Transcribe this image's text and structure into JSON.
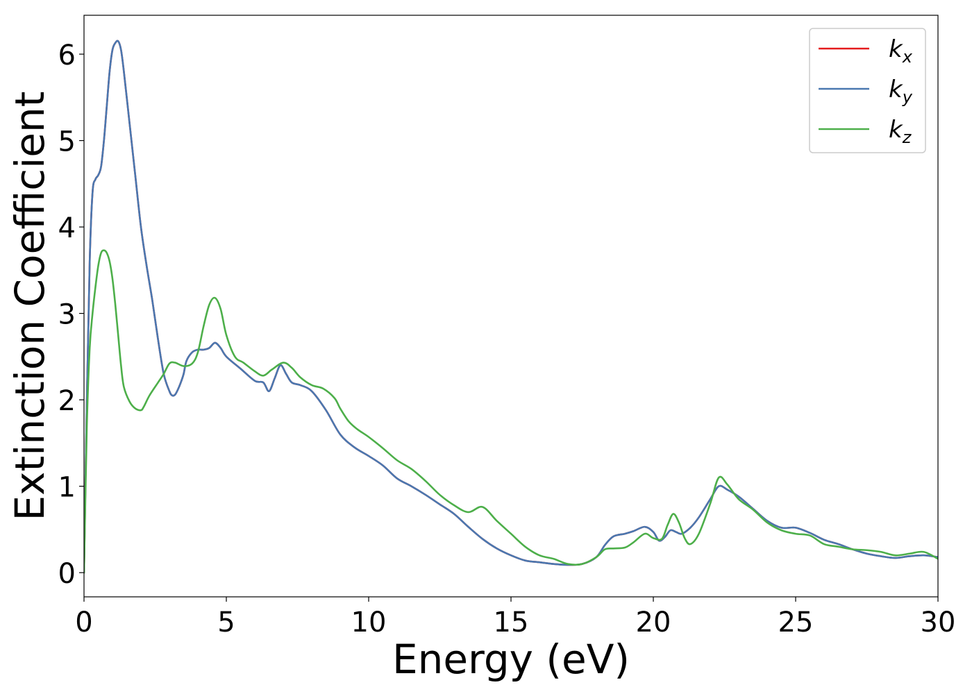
{
  "chart_data": {
    "type": "line",
    "title": "",
    "xlabel": "Energy (eV)",
    "ylabel": "Extinction Coefficient",
    "xlim": [
      0,
      30
    ],
    "ylim": [
      -0.28,
      6.45
    ],
    "xticks": [
      0,
      5,
      10,
      15,
      20,
      25,
      30
    ],
    "yticks": [
      0,
      1,
      2,
      3,
      4,
      5,
      6
    ],
    "grid": false,
    "legend_position": "top-right",
    "series": [
      {
        "name": "k_x",
        "label_main": "k",
        "label_sub": "x",
        "color": "#e41a1c",
        "x": [
          0,
          0.1,
          0.2,
          0.3,
          0.4,
          0.5,
          0.6,
          0.7,
          0.8,
          0.9,
          1.0,
          1.1,
          1.2,
          1.3,
          1.4,
          1.6,
          1.8,
          2.0,
          2.2,
          2.4,
          2.6,
          2.8,
          3.0,
          3.1,
          3.2,
          3.3,
          3.4,
          3.5,
          3.6,
          3.8,
          4.0,
          4.2,
          4.4,
          4.6,
          4.8,
          5.0,
          5.5,
          6.0,
          6.3,
          6.5,
          6.7,
          6.9,
          7.1,
          7.3,
          7.6,
          8.0,
          8.5,
          9.0,
          9.5,
          10.0,
          10.5,
          11.0,
          11.5,
          12.0,
          12.5,
          13.0,
          13.5,
          14.0,
          14.5,
          15.0,
          15.5,
          16.0,
          16.5,
          17.0,
          17.5,
          18.0,
          18.3,
          18.6,
          19.0,
          19.3,
          19.7,
          20.0,
          20.2,
          20.4,
          20.6,
          20.8,
          21.0,
          21.3,
          21.6,
          22.0,
          22.3,
          22.6,
          23.0,
          23.5,
          24.0,
          24.5,
          25.0,
          25.5,
          26.0,
          26.5,
          27.0,
          27.5,
          28.0,
          28.5,
          29.0,
          29.5,
          30.0
        ],
        "y": [
          0,
          2.0,
          3.6,
          4.4,
          4.55,
          4.6,
          4.7,
          5.0,
          5.4,
          5.8,
          6.05,
          6.13,
          6.15,
          6.05,
          5.8,
          5.2,
          4.6,
          4.0,
          3.55,
          3.15,
          2.7,
          2.3,
          2.1,
          2.05,
          2.06,
          2.12,
          2.2,
          2.3,
          2.45,
          2.55,
          2.58,
          2.58,
          2.6,
          2.66,
          2.6,
          2.5,
          2.36,
          2.22,
          2.2,
          2.1,
          2.25,
          2.4,
          2.3,
          2.2,
          2.17,
          2.1,
          1.88,
          1.6,
          1.45,
          1.35,
          1.24,
          1.09,
          1.0,
          0.9,
          0.79,
          0.68,
          0.53,
          0.39,
          0.28,
          0.2,
          0.14,
          0.12,
          0.1,
          0.09,
          0.1,
          0.18,
          0.32,
          0.42,
          0.45,
          0.48,
          0.53,
          0.47,
          0.37,
          0.41,
          0.49,
          0.47,
          0.45,
          0.52,
          0.64,
          0.85,
          1.0,
          0.96,
          0.88,
          0.74,
          0.6,
          0.52,
          0.52,
          0.46,
          0.38,
          0.33,
          0.27,
          0.22,
          0.19,
          0.17,
          0.19,
          0.2,
          0.18
        ]
      },
      {
        "name": "k_y",
        "label_main": "k",
        "label_sub": "y",
        "color": "#4a78b0",
        "x": [
          0,
          0.1,
          0.2,
          0.3,
          0.4,
          0.5,
          0.6,
          0.7,
          0.8,
          0.9,
          1.0,
          1.1,
          1.2,
          1.3,
          1.4,
          1.6,
          1.8,
          2.0,
          2.2,
          2.4,
          2.6,
          2.8,
          3.0,
          3.1,
          3.2,
          3.3,
          3.4,
          3.5,
          3.6,
          3.8,
          4.0,
          4.2,
          4.4,
          4.6,
          4.8,
          5.0,
          5.5,
          6.0,
          6.3,
          6.5,
          6.7,
          6.9,
          7.1,
          7.3,
          7.6,
          8.0,
          8.5,
          9.0,
          9.5,
          10.0,
          10.5,
          11.0,
          11.5,
          12.0,
          12.5,
          13.0,
          13.5,
          14.0,
          14.5,
          15.0,
          15.5,
          16.0,
          16.5,
          17.0,
          17.5,
          18.0,
          18.3,
          18.6,
          19.0,
          19.3,
          19.7,
          20.0,
          20.2,
          20.4,
          20.6,
          20.8,
          21.0,
          21.3,
          21.6,
          22.0,
          22.3,
          22.6,
          23.0,
          23.5,
          24.0,
          24.5,
          25.0,
          25.5,
          26.0,
          26.5,
          27.0,
          27.5,
          28.0,
          28.5,
          29.0,
          29.5,
          30.0
        ],
        "y": [
          0,
          2.0,
          3.6,
          4.4,
          4.55,
          4.6,
          4.7,
          5.0,
          5.4,
          5.8,
          6.05,
          6.13,
          6.15,
          6.05,
          5.8,
          5.2,
          4.6,
          4.0,
          3.55,
          3.15,
          2.7,
          2.3,
          2.1,
          2.05,
          2.06,
          2.12,
          2.2,
          2.3,
          2.45,
          2.55,
          2.58,
          2.58,
          2.6,
          2.66,
          2.6,
          2.5,
          2.36,
          2.22,
          2.2,
          2.1,
          2.25,
          2.4,
          2.3,
          2.2,
          2.17,
          2.1,
          1.88,
          1.6,
          1.45,
          1.35,
          1.24,
          1.09,
          1.0,
          0.9,
          0.79,
          0.68,
          0.53,
          0.39,
          0.28,
          0.2,
          0.14,
          0.12,
          0.1,
          0.09,
          0.1,
          0.18,
          0.32,
          0.42,
          0.45,
          0.48,
          0.53,
          0.47,
          0.37,
          0.41,
          0.49,
          0.47,
          0.45,
          0.52,
          0.64,
          0.85,
          1.0,
          0.96,
          0.88,
          0.74,
          0.6,
          0.52,
          0.52,
          0.46,
          0.38,
          0.33,
          0.27,
          0.22,
          0.19,
          0.17,
          0.19,
          0.2,
          0.18
        ]
      },
      {
        "name": "k_z",
        "label_main": "k",
        "label_sub": "z",
        "color": "#4daf4a",
        "x": [
          0,
          0.1,
          0.2,
          0.3,
          0.4,
          0.5,
          0.6,
          0.7,
          0.8,
          0.9,
          1.0,
          1.1,
          1.2,
          1.3,
          1.4,
          1.6,
          1.8,
          2.0,
          2.1,
          2.3,
          2.6,
          2.8,
          3.0,
          3.2,
          3.5,
          3.8,
          4.0,
          4.2,
          4.4,
          4.6,
          4.8,
          5.0,
          5.3,
          5.6,
          6.0,
          6.3,
          6.6,
          7.0,
          7.3,
          7.6,
          8.0,
          8.4,
          8.8,
          9.0,
          9.3,
          9.6,
          10.0,
          10.5,
          11.0,
          11.5,
          12.0,
          12.5,
          13.0,
          13.5,
          14.0,
          14.5,
          15.0,
          15.5,
          16.0,
          16.5,
          17.0,
          17.5,
          18.0,
          18.3,
          18.6,
          19.0,
          19.3,
          19.7,
          20.0,
          20.3,
          20.5,
          20.7,
          20.9,
          21.1,
          21.3,
          21.6,
          22.0,
          22.3,
          22.6,
          23.0,
          23.5,
          24.0,
          24.5,
          25.0,
          25.5,
          26.0,
          26.5,
          27.0,
          27.5,
          28.0,
          28.5,
          29.0,
          29.5,
          30.0
        ],
        "y": [
          0,
          1.7,
          2.6,
          3.0,
          3.3,
          3.55,
          3.7,
          3.73,
          3.7,
          3.6,
          3.4,
          3.1,
          2.75,
          2.4,
          2.15,
          1.98,
          1.9,
          1.88,
          1.92,
          2.05,
          2.2,
          2.3,
          2.42,
          2.43,
          2.39,
          2.42,
          2.55,
          2.85,
          3.1,
          3.18,
          3.05,
          2.75,
          2.5,
          2.43,
          2.33,
          2.28,
          2.35,
          2.43,
          2.37,
          2.26,
          2.17,
          2.13,
          2.02,
          1.9,
          1.75,
          1.66,
          1.57,
          1.44,
          1.3,
          1.2,
          1.06,
          0.9,
          0.78,
          0.7,
          0.76,
          0.6,
          0.45,
          0.3,
          0.2,
          0.16,
          0.1,
          0.1,
          0.18,
          0.27,
          0.28,
          0.29,
          0.35,
          0.45,
          0.4,
          0.39,
          0.55,
          0.68,
          0.58,
          0.4,
          0.33,
          0.45,
          0.8,
          1.1,
          1.02,
          0.85,
          0.73,
          0.58,
          0.49,
          0.45,
          0.43,
          0.33,
          0.3,
          0.27,
          0.26,
          0.24,
          0.2,
          0.22,
          0.24,
          0.16
        ]
      }
    ]
  }
}
